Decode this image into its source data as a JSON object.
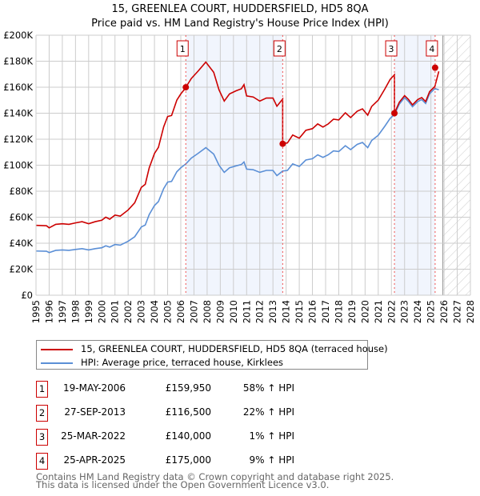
{
  "chart_data": {
    "type": "line",
    "title": "15, GREENLEA COURT, HUDDERSFIELD, HD5 8QA",
    "subtitle": "Price paid vs. HM Land Registry's House Price Index (HPI)",
    "xlim": [
      1995,
      2028
    ],
    "ylim": [
      0,
      200000
    ],
    "x_ticks": [
      "1995",
      "1996",
      "1997",
      "1998",
      "1999",
      "2000",
      "2001",
      "2002",
      "2003",
      "2004",
      "2005",
      "2006",
      "2007",
      "2008",
      "2009",
      "2010",
      "2011",
      "2012",
      "2013",
      "2014",
      "2015",
      "2016",
      "2017",
      "2018",
      "2019",
      "2020",
      "2021",
      "2022",
      "2023",
      "2024",
      "2025",
      "2026",
      "2027",
      "2028"
    ],
    "y_ticks": [
      {
        "v": 0,
        "label": "£0"
      },
      {
        "v": 20000,
        "label": "£20K"
      },
      {
        "v": 40000,
        "label": "£40K"
      },
      {
        "v": 60000,
        "label": "£60K"
      },
      {
        "v": 80000,
        "label": "£80K"
      },
      {
        "v": 100000,
        "label": "£100K"
      },
      {
        "v": 120000,
        "label": "£120K"
      },
      {
        "v": 140000,
        "label": "£140K"
      },
      {
        "v": 160000,
        "label": "£160K"
      },
      {
        "v": 180000,
        "label": "£180K"
      },
      {
        "v": 200000,
        "label": "£200K"
      }
    ],
    "grid": true,
    "forecast_from": 2025.9,
    "series": [
      {
        "name": "15, GREENLEA COURT, HUDDERSFIELD, HD5 8QA (terraced house)",
        "color": "#cc0000",
        "premium_factor_segments": [
          {
            "until": 2006.38,
            "factor": 1.58
          },
          {
            "until": 2013.74,
            "factor": 1.58
          },
          {
            "until": 2022.23,
            "factor": 1.22
          },
          {
            "until": 2025.32,
            "factor": 1.01
          },
          {
            "until": 2030,
            "factor": 1.09
          }
        ]
      },
      {
        "name": "HPI: Average price, terraced house, Kirklees",
        "color": "#5b8fd6",
        "points": [
          [
            1995,
            34000
          ],
          [
            1995.8,
            33800
          ],
          [
            1996,
            32800
          ],
          [
            1996.5,
            34500
          ],
          [
            1997,
            34800
          ],
          [
            1997.5,
            34500
          ],
          [
            1998,
            35200
          ],
          [
            1998.5,
            35800
          ],
          [
            1999,
            34800
          ],
          [
            1999.5,
            35800
          ],
          [
            2000,
            36500
          ],
          [
            2000.3,
            38000
          ],
          [
            2000.6,
            37000
          ],
          [
            2001,
            39000
          ],
          [
            2001.4,
            38500
          ],
          [
            2002,
            41500
          ],
          [
            2002.5,
            45000
          ],
          [
            2003,
            52500
          ],
          [
            2003.3,
            54000
          ],
          [
            2003.6,
            62000
          ],
          [
            2004,
            69000
          ],
          [
            2004.3,
            72000
          ],
          [
            2004.7,
            82000
          ],
          [
            2005,
            87000
          ],
          [
            2005.3,
            87500
          ],
          [
            2005.7,
            95000
          ],
          [
            2006,
            98000
          ],
          [
            2006.38,
            101000
          ],
          [
            2006.8,
            105500
          ],
          [
            2007.3,
            109000
          ],
          [
            2007.9,
            113500
          ],
          [
            2008.5,
            108500
          ],
          [
            2008.9,
            100000
          ],
          [
            2009.3,
            94500
          ],
          [
            2009.7,
            98000
          ],
          [
            2010.2,
            99500
          ],
          [
            2010.6,
            100500
          ],
          [
            2010.8,
            102500
          ],
          [
            2011,
            97000
          ],
          [
            2011.5,
            96500
          ],
          [
            2012,
            94500
          ],
          [
            2012.5,
            96000
          ],
          [
            2013,
            96000
          ],
          [
            2013.3,
            92000
          ],
          [
            2013.74,
            95500
          ],
          [
            2014.1,
            96000
          ],
          [
            2014.5,
            101000
          ],
          [
            2015,
            99000
          ],
          [
            2015.5,
            104000
          ],
          [
            2016,
            105000
          ],
          [
            2016.4,
            108000
          ],
          [
            2016.8,
            106000
          ],
          [
            2017.2,
            108000
          ],
          [
            2017.6,
            111000
          ],
          [
            2018,
            110500
          ],
          [
            2018.5,
            115000
          ],
          [
            2018.9,
            112000
          ],
          [
            2019.4,
            116000
          ],
          [
            2019.8,
            117500
          ],
          [
            2020.2,
            113500
          ],
          [
            2020.5,
            119000
          ],
          [
            2021,
            123000
          ],
          [
            2021.5,
            130000
          ],
          [
            2021.9,
            136000
          ],
          [
            2022.23,
            139000
          ],
          [
            2022.6,
            147000
          ],
          [
            2023,
            152000
          ],
          [
            2023.3,
            149000
          ],
          [
            2023.6,
            145000
          ],
          [
            2024,
            149000
          ],
          [
            2024.3,
            150500
          ],
          [
            2024.6,
            147500
          ],
          [
            2024.9,
            155000
          ],
          [
            2025.3,
            159000
          ],
          [
            2025.6,
            158000
          ]
        ]
      }
    ],
    "sales": [
      {
        "n": "1",
        "x": 2006.38,
        "price": 159950
      },
      {
        "n": "2",
        "x": 2013.74,
        "price": 116500
      },
      {
        "n": "3",
        "x": 2022.23,
        "price": 140000
      },
      {
        "n": "4",
        "x": 2025.32,
        "price": 175000
      }
    ]
  },
  "legend": {
    "items": [
      {
        "label": "15, GREENLEA COURT, HUDDERSFIELD, HD5 8QA (terraced house)",
        "color": "#cc0000"
      },
      {
        "label": "HPI: Average price, terraced house, Kirklees",
        "color": "#5b8fd6"
      }
    ]
  },
  "table": [
    {
      "n": "1",
      "date": "19-MAY-2006",
      "price": "£159,950",
      "change": "58% ↑ HPI"
    },
    {
      "n": "2",
      "date": "27-SEP-2013",
      "price": "£116,500",
      "change": "22% ↑ HPI"
    },
    {
      "n": "3",
      "date": "25-MAR-2022",
      "price": "£140,000",
      "change": "1% ↑ HPI"
    },
    {
      "n": "4",
      "date": "25-APR-2025",
      "price": "£175,000",
      "change": "9% ↑ HPI"
    }
  ],
  "footer": {
    "line1": "Contains HM Land Registry data © Crown copyright and database right 2025.",
    "line2": "This data is licensed under the Open Government Licence v3.0."
  }
}
